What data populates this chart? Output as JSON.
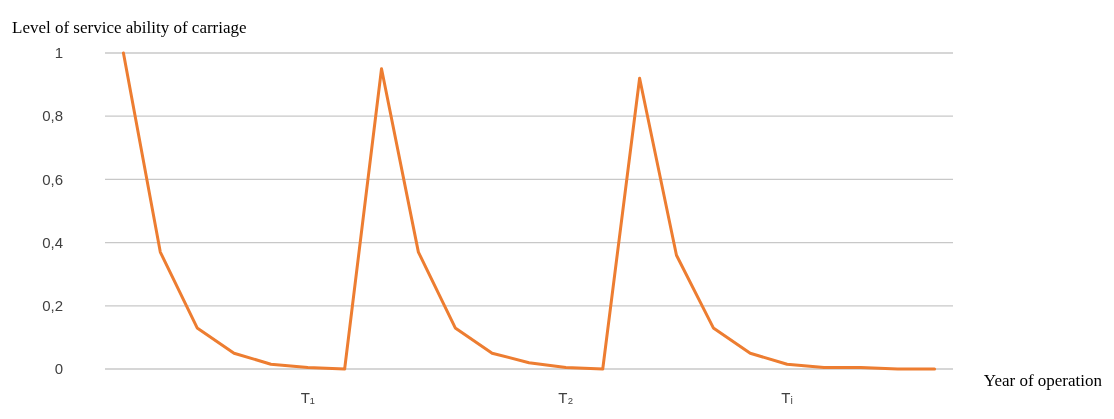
{
  "chart_data": {
    "type": "line",
    "ylabel": "Level of service ability of carriage",
    "xlabel": "Year of operation",
    "categories": [
      null,
      null,
      null,
      null,
      null,
      "T₁",
      null,
      null,
      null,
      null,
      null,
      null,
      "T₂",
      null,
      null,
      null,
      null,
      null,
      "Tᵢ",
      null,
      null,
      null,
      null
    ],
    "series": [
      {
        "color": "#ed7d31",
        "values": [
          1,
          0.37,
          0.13,
          0.05,
          0.015,
          0.005,
          0,
          0.95,
          0.37,
          0.13,
          0.05,
          0.02,
          0.005,
          0,
          0.92,
          0.36,
          0.13,
          0.05,
          0.015,
          0.005,
          0.005,
          0,
          0
        ]
      }
    ],
    "ylim": [
      0,
      1
    ],
    "yticks": [
      0,
      {
        "value": 0.2,
        "label": "0,2"
      },
      {
        "value": 0.4,
        "label": "0,4"
      },
      {
        "value": 0.6,
        "label": "0,6"
      },
      {
        "value": 0.8,
        "label": "0,8"
      },
      1
    ],
    "grid": "y",
    "marker": "none",
    "line_style": "solid"
  }
}
